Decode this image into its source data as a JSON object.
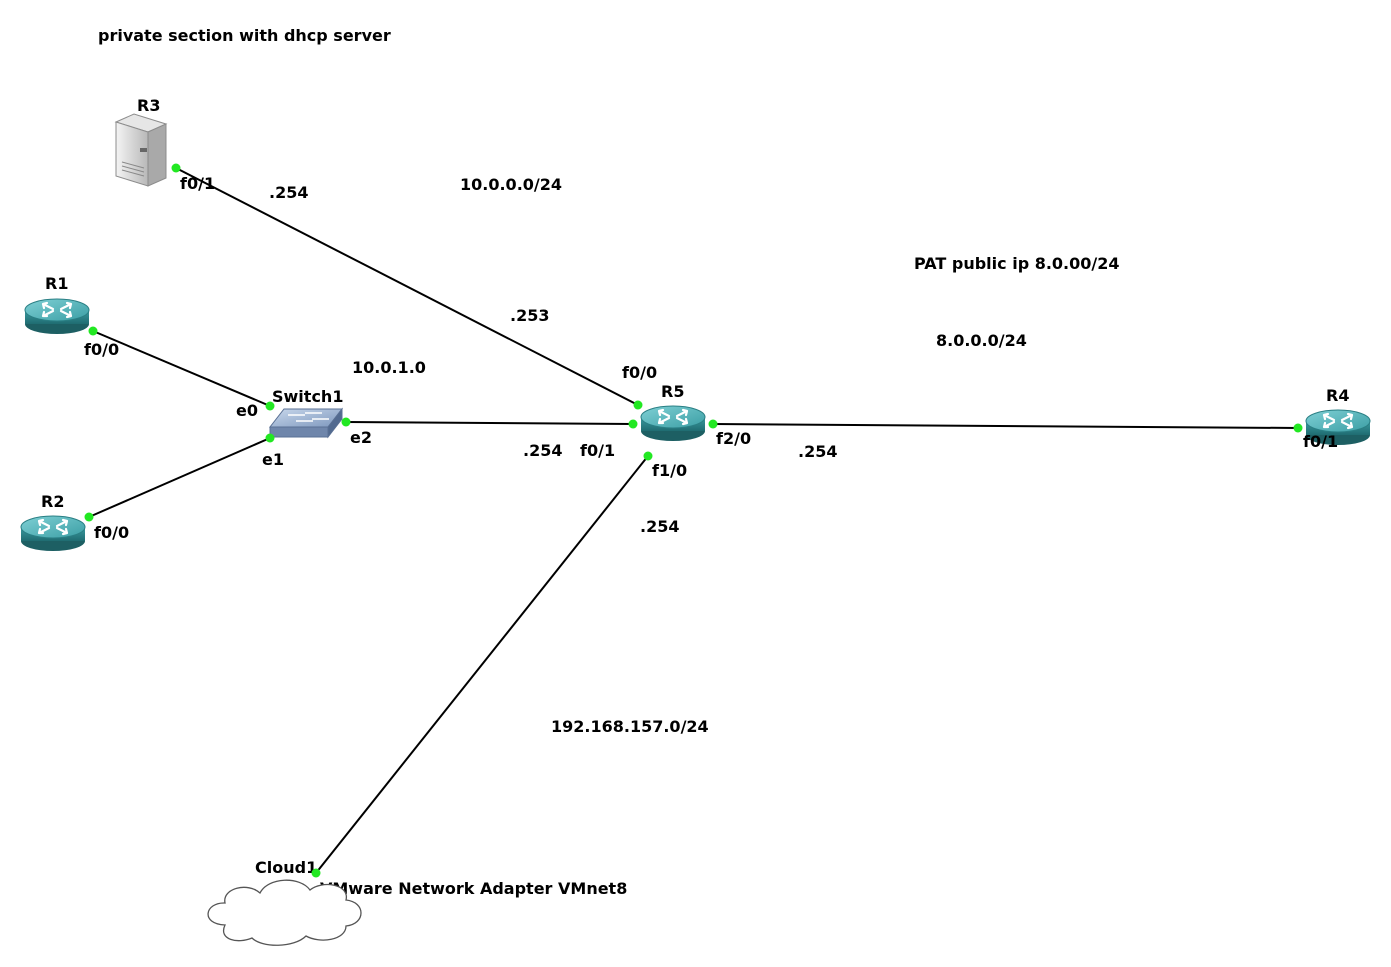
{
  "notes": {
    "private_section": "private section with dhcp server",
    "net_10_0_0": "10.0.0.0/24",
    "pat_public": "PAT public ip 8.0.00/24",
    "net_8_0_0": "8.0.0.0/24",
    "net_10_0_1": "10.0.1.0",
    "net_192": "192.168.157.0/24",
    "vmnet": "VMware Network Adapter VMnet8"
  },
  "nodes": {
    "r1": {
      "label": "R1",
      "type": "router"
    },
    "r2": {
      "label": "R2",
      "type": "router"
    },
    "r3": {
      "label": "R3",
      "type": "server"
    },
    "r4": {
      "label": "R4",
      "type": "router"
    },
    "r5": {
      "label": "R5",
      "type": "router"
    },
    "switch1": {
      "label": "Switch1",
      "type": "ethernet-switch"
    },
    "cloud1": {
      "label": "Cloud1",
      "type": "cloud"
    }
  },
  "ports": {
    "r3_f01": "f0/1",
    "r1_f00": "f0/0",
    "r2_f00": "f0/0",
    "sw_e0": "e0",
    "sw_e1": "e1",
    "sw_e2": "e2",
    "r5_f00": "f0/0",
    "r5_f01": "f0/1",
    "r5_f10": "f1/0",
    "r5_f20": "f2/0",
    "r4_f01": "f0/1"
  },
  "addresses": {
    "r3_254": ".254",
    "r5_253": ".253",
    "r5_f01_254": ".254",
    "r5_f20_254": ".254",
    "r5_f10_254": ".254"
  },
  "colors": {
    "link": "#000000",
    "port_dot": "#22e822",
    "router_body": "#2f8d92",
    "router_top": "#4fb7bd"
  }
}
